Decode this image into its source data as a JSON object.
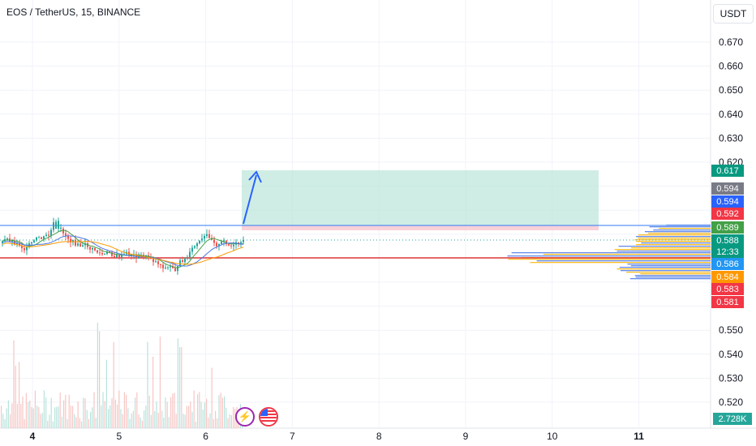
{
  "header": {
    "symbol_title": "EOS / TetherUS, 15, BINANCE",
    "currency_label": "USDT"
  },
  "colors": {
    "up": "#26a69a",
    "down": "#ef5350",
    "grid": "#f0f3fa",
    "blue_line": "#3179f5",
    "red_line": "#e03636",
    "target_zone": "#b6e4d6",
    "stop_zone": "#f7c6cf",
    "volume_profile_blue": "#4a78e6",
    "volume_profile_orange": "#ffb300"
  },
  "chart_data": {
    "type": "candlestick",
    "title": "EOS / TetherUS, 15, BINANCE",
    "y_axis_ticks": [
      "0.670",
      "0.660",
      "0.650",
      "0.640",
      "0.630",
      "0.620",
      "0.550",
      "0.540",
      "0.530",
      "0.520"
    ],
    "x_axis_ticks": [
      "4",
      "5",
      "6",
      "7",
      "8",
      "9",
      "10",
      "11"
    ],
    "ylim": [
      0.515,
      0.675
    ],
    "price_range": [
      0.583,
      0.593
    ],
    "resistance_level": 0.5895,
    "support_level": 0.5858,
    "position_entry": 0.5888,
    "position_target": 0.617,
    "price_labels": [
      {
        "text": "0.617",
        "color": "#089981"
      },
      {
        "text": "0.594",
        "color": "#787b86"
      },
      {
        "text": "0.594",
        "color": "#2962ff"
      },
      {
        "text": "0.592",
        "color": "#f23645"
      },
      {
        "text": "0.589",
        "color": "#43a047"
      },
      {
        "text": "0.588",
        "color": "#089981"
      },
      {
        "text": "12:33",
        "color": "#089981"
      },
      {
        "text": "0.586",
        "color": "#2196f3"
      },
      {
        "text": "0.584",
        "color": "#ff9800"
      },
      {
        "text": "0.583",
        "color": "#f23645"
      },
      {
        "text": "0.581",
        "color": "#f23645"
      }
    ],
    "volume_label": "2.728K",
    "grid": true
  }
}
